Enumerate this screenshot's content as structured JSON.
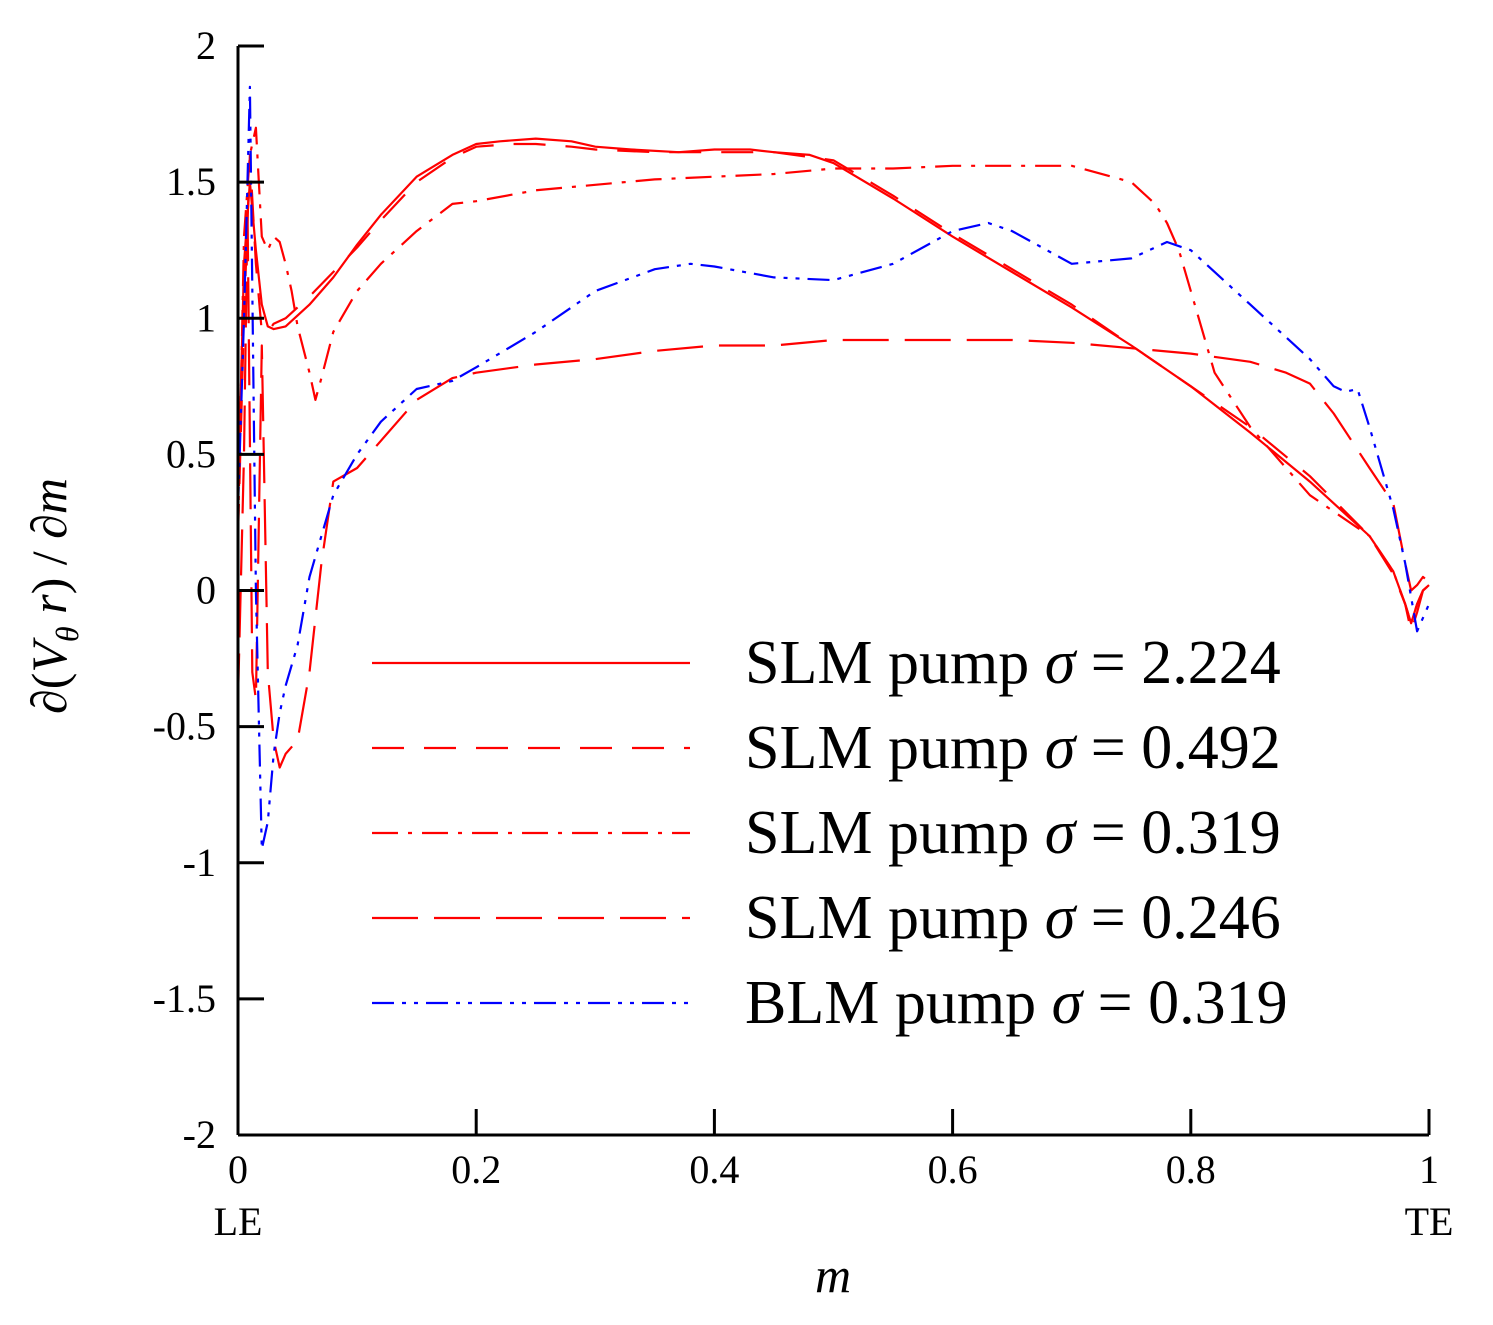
{
  "chart_data": {
    "type": "line",
    "title": "",
    "xlabel": "m",
    "ylabel": "∂(Vθ r) / ∂m",
    "ylabel_parts": {
      "partial": "∂",
      "open": "(",
      "V": "V",
      "sub": "θ",
      "r": " r",
      "close": ")",
      "slash": " / ",
      "dm": "∂m"
    },
    "xlim": [
      0,
      1
    ],
    "ylim": [
      -2,
      2
    ],
    "xticks": [
      0,
      0.2,
      0.4,
      0.6,
      0.8,
      1
    ],
    "xtick_labels": [
      "0",
      "0.2",
      "0.4",
      "0.6",
      "0.8",
      "1"
    ],
    "yticks": [
      -2,
      -1.5,
      -1,
      -0.5,
      0,
      0.5,
      1,
      1.5,
      2
    ],
    "ytick_labels": [
      "-2",
      "-1.5",
      "-1",
      "-0.5",
      "0",
      "0.5",
      "1",
      "1.5",
      "2"
    ],
    "x_annotations": [
      {
        "x": 0,
        "label": "LE"
      },
      {
        "x": 1,
        "label": "TE"
      }
    ],
    "grid": false,
    "legend_position": "center-right",
    "series": [
      {
        "name": "SLM pump σ = 2.224",
        "legend_prefix": "SLM pump ",
        "sigma_symbol": "σ",
        "legend_suffix": " = 2.224",
        "color": "#ff0000",
        "dash": "solid",
        "x": [
          0.0,
          0.005,
          0.01,
          0.015,
          0.02,
          0.025,
          0.03,
          0.04,
          0.06,
          0.08,
          0.1,
          0.12,
          0.15,
          0.18,
          0.2,
          0.22,
          0.25,
          0.28,
          0.3,
          0.33,
          0.37,
          0.4,
          0.43,
          0.45,
          0.48,
          0.5,
          0.55,
          0.6,
          0.65,
          0.7,
          0.75,
          0.8,
          0.85,
          0.9,
          0.95,
          0.97,
          0.98,
          0.985,
          0.99,
          0.995,
          1.0
        ],
        "y": [
          0.3,
          1.2,
          1.5,
          1.25,
          1.05,
          0.97,
          0.96,
          0.97,
          1.05,
          1.15,
          1.27,
          1.38,
          1.52,
          1.6,
          1.64,
          1.65,
          1.66,
          1.65,
          1.63,
          1.62,
          1.61,
          1.62,
          1.62,
          1.61,
          1.6,
          1.57,
          1.44,
          1.3,
          1.17,
          1.04,
          0.9,
          0.75,
          0.58,
          0.4,
          0.2,
          0.07,
          -0.05,
          -0.12,
          -0.05,
          0.0,
          0.02
        ]
      },
      {
        "name": "SLM pump σ = 0.492",
        "legend_prefix": "SLM pump ",
        "sigma_symbol": "σ",
        "legend_suffix": " = 0.492",
        "color": "#ff0000",
        "dash": "dashed",
        "x": [
          0.0,
          0.005,
          0.01,
          0.015,
          0.02,
          0.025,
          0.03,
          0.04,
          0.06,
          0.08,
          0.1,
          0.12,
          0.15,
          0.18,
          0.2,
          0.23,
          0.25,
          0.28,
          0.3,
          0.35,
          0.4,
          0.45,
          0.5,
          0.55,
          0.6,
          0.65,
          0.7,
          0.75,
          0.8,
          0.85,
          0.9,
          0.95,
          0.97,
          0.98,
          0.985,
          0.99,
          0.995,
          1.0
        ],
        "y": [
          0.2,
          1.0,
          1.6,
          1.2,
          0.95,
          0.95,
          0.98,
          1.0,
          1.08,
          1.17,
          1.26,
          1.36,
          1.5,
          1.59,
          1.63,
          1.64,
          1.64,
          1.63,
          1.62,
          1.61,
          1.61,
          1.61,
          1.58,
          1.45,
          1.31,
          1.18,
          1.05,
          0.9,
          0.75,
          0.6,
          0.42,
          0.2,
          0.06,
          -0.05,
          -0.15,
          -0.08,
          0.0,
          0.02
        ]
      },
      {
        "name": "SLM pump σ = 0.319",
        "legend_prefix": "SLM pump ",
        "sigma_symbol": "σ",
        "legend_suffix": " = 0.319",
        "color": "#ff0000",
        "dash": "dashdot",
        "x": [
          0.0,
          0.005,
          0.01,
          0.015,
          0.02,
          0.025,
          0.03,
          0.035,
          0.04,
          0.045,
          0.05,
          0.06,
          0.065,
          0.07,
          0.08,
          0.1,
          0.12,
          0.15,
          0.18,
          0.2,
          0.25,
          0.3,
          0.35,
          0.4,
          0.45,
          0.5,
          0.55,
          0.6,
          0.65,
          0.7,
          0.75,
          0.77,
          0.78,
          0.79,
          0.8,
          0.82,
          0.85,
          0.9,
          0.95,
          0.97,
          0.98,
          0.985,
          0.99,
          0.995,
          1.0
        ],
        "y": [
          0.2,
          1.3,
          1.6,
          1.7,
          1.3,
          1.25,
          1.3,
          1.28,
          1.2,
          1.1,
          0.97,
          0.8,
          0.7,
          0.78,
          0.95,
          1.1,
          1.2,
          1.32,
          1.42,
          1.43,
          1.47,
          1.49,
          1.51,
          1.52,
          1.53,
          1.55,
          1.55,
          1.56,
          1.56,
          1.56,
          1.5,
          1.42,
          1.35,
          1.25,
          1.1,
          0.8,
          0.6,
          0.35,
          0.2,
          0.07,
          -0.05,
          -0.12,
          -0.05,
          0.0,
          0.02
        ]
      },
      {
        "name": "SLM pump σ = 0.246",
        "legend_prefix": "SLM pump ",
        "sigma_symbol": "σ",
        "legend_suffix": " = 0.246",
        "color": "#ff0000",
        "dash": "longdash",
        "x": [
          0.0,
          0.005,
          0.008,
          0.012,
          0.015,
          0.02,
          0.025,
          0.03,
          0.035,
          0.04,
          0.05,
          0.06,
          0.07,
          0.08,
          0.1,
          0.12,
          0.15,
          0.18,
          0.2,
          0.25,
          0.3,
          0.35,
          0.4,
          0.45,
          0.5,
          0.55,
          0.6,
          0.65,
          0.7,
          0.75,
          0.8,
          0.85,
          0.88,
          0.9,
          0.92,
          0.95,
          0.97,
          0.98,
          0.985,
          0.99,
          0.995,
          1.0
        ],
        "y": [
          -0.4,
          0.5,
          1.4,
          -0.3,
          -0.4,
          0.9,
          -0.3,
          -0.55,
          -0.65,
          -0.6,
          -0.55,
          -0.3,
          0.1,
          0.4,
          0.45,
          0.55,
          0.7,
          0.78,
          0.8,
          0.83,
          0.85,
          0.88,
          0.9,
          0.9,
          0.92,
          0.92,
          0.92,
          0.92,
          0.91,
          0.89,
          0.87,
          0.84,
          0.8,
          0.76,
          0.65,
          0.45,
          0.32,
          0.1,
          0.0,
          0.02,
          0.05,
          0.03
        ]
      },
      {
        "name": "BLM pump σ = 0.319",
        "legend_prefix": "BLM pump ",
        "sigma_symbol": "σ",
        "legend_suffix": " = 0.319",
        "color": "#0000ff",
        "dash": "dashdotdot",
        "x": [
          0.0,
          0.005,
          0.01,
          0.015,
          0.02,
          0.025,
          0.03,
          0.035,
          0.04,
          0.05,
          0.06,
          0.08,
          0.1,
          0.12,
          0.15,
          0.18,
          0.2,
          0.25,
          0.3,
          0.35,
          0.38,
          0.4,
          0.45,
          0.5,
          0.55,
          0.6,
          0.63,
          0.65,
          0.7,
          0.75,
          0.78,
          0.8,
          0.85,
          0.9,
          0.92,
          0.93,
          0.94,
          0.95,
          0.97,
          0.98,
          0.99,
          1.0
        ],
        "y": [
          0.3,
          1.0,
          1.85,
          0.0,
          -0.95,
          -0.85,
          -0.6,
          -0.45,
          -0.35,
          -0.2,
          0.05,
          0.35,
          0.5,
          0.62,
          0.74,
          0.77,
          0.82,
          0.95,
          1.1,
          1.18,
          1.2,
          1.19,
          1.15,
          1.14,
          1.2,
          1.32,
          1.35,
          1.32,
          1.2,
          1.22,
          1.28,
          1.25,
          1.05,
          0.85,
          0.75,
          0.73,
          0.74,
          0.6,
          0.3,
          0.1,
          -0.15,
          -0.05
        ]
      }
    ]
  }
}
